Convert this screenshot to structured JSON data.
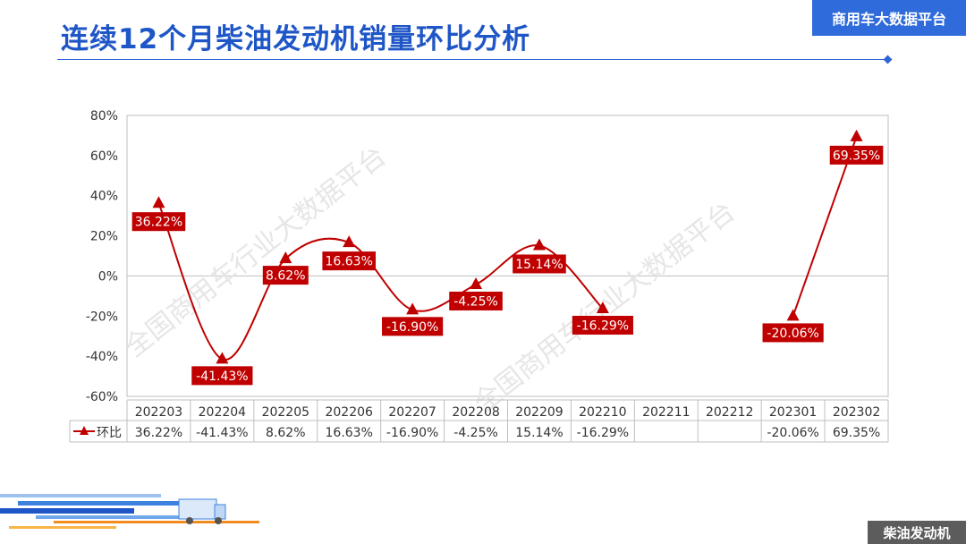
{
  "header": {
    "title": "连续12个月柴油发动机销量环比分析",
    "brand": "商用车大数据平台"
  },
  "footer": {
    "tag": "柴油发动机"
  },
  "watermark": "全国商用车行业大数据平台",
  "colors": {
    "accent": "#1F56C7",
    "series": "#C00000",
    "brand_bg": "#2F6BDB",
    "footer_bg": "#5C5C5C"
  },
  "chart_data": {
    "type": "line",
    "categories": [
      "202203",
      "202204",
      "202205",
      "202206",
      "202207",
      "202208",
      "202209",
      "202210",
      "202211",
      "202212",
      "202301",
      "202302"
    ],
    "series": [
      {
        "name": "环比",
        "values": [
          36.22,
          -41.43,
          8.62,
          16.63,
          -16.9,
          -4.25,
          15.14,
          -16.29,
          null,
          null,
          -20.06,
          69.35
        ],
        "labels": [
          "36.22%",
          "-41.43%",
          "8.62%",
          "16.63%",
          "-16.90%",
          "-4.25%",
          "15.14%",
          "-16.29%",
          "",
          "",
          "-20.06%",
          "69.35%"
        ]
      }
    ],
    "ylim": [
      -60,
      80
    ],
    "yticks": [
      -60,
      -40,
      -20,
      0,
      20,
      40,
      60,
      80
    ],
    "ytick_labels": [
      "-60%",
      "-40%",
      "-20%",
      "0%",
      "20%",
      "40%",
      "60%",
      "80%"
    ],
    "marker": "triangle",
    "smooth": true,
    "data_table": true,
    "grid": false
  }
}
